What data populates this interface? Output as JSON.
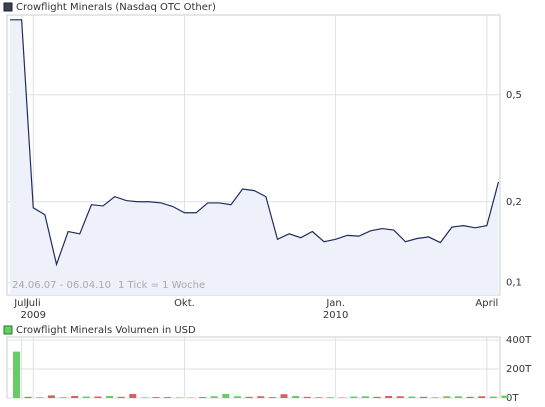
{
  "chart_data": [
    {
      "type": "line",
      "log_y": true,
      "grid": true,
      "series": [
        {
          "name": "Crowflight Minerals (Nasdaq OTC Other)",
          "color": "#1f2d5c",
          "area_color": "#eef0fa",
          "values": [
            0.95,
            0.95,
            0.19,
            0.179,
            0.117,
            0.155,
            0.152,
            0.195,
            0.193,
            0.209,
            0.202,
            0.2,
            0.2,
            0.198,
            0.192,
            0.182,
            0.182,
            0.198,
            0.198,
            0.195,
            0.223,
            0.22,
            0.209,
            0.145,
            0.152,
            0.147,
            0.155,
            0.142,
            0.145,
            0.15,
            0.149,
            0.156,
            0.159,
            0.157,
            0.142,
            0.146,
            0.148,
            0.141,
            0.161,
            0.163,
            0.16,
            0.163,
            0.237
          ]
        }
      ],
      "categories": [
        null,
        "Juli",
        "Juli",
        null,
        null,
        null,
        null,
        null,
        null,
        null,
        null,
        null,
        null,
        null,
        null,
        "Okt.",
        null,
        null,
        null,
        null,
        null,
        null,
        null,
        null,
        null,
        null,
        null,
        null,
        "Jan.",
        null,
        null,
        null,
        null,
        null,
        null,
        null,
        null,
        null,
        null,
        null,
        null,
        "April",
        null
      ],
      "year_labels": [
        null,
        null,
        "2009",
        null,
        null,
        null,
        null,
        null,
        null,
        null,
        null,
        null,
        null,
        null,
        null,
        null,
        null,
        null,
        null,
        null,
        null,
        null,
        null,
        null,
        null,
        null,
        null,
        null,
        "2010",
        null,
        null,
        null,
        null,
        null,
        null,
        null,
        null,
        null,
        null,
        null,
        null,
        null,
        null
      ],
      "ylim": [
        0.09,
        0.99
      ],
      "yticks": [
        {
          "value": 0.5,
          "label": "0,5"
        },
        {
          "value": 0.2,
          "label": "0,2"
        },
        {
          "value": 0.1,
          "label": "0,1"
        }
      ],
      "annotations": [
        "24.06.07 - 06.04.10",
        "1 Tick = 1 Woche"
      ]
    },
    {
      "type": "bar",
      "grid": true,
      "series": [
        {
          "name": "Crowflight Minerals Volumen in USD",
          "color": "#66cc66",
          "values": [
            320000,
            8000,
            4000,
            18000,
            4000,
            14000,
            10000,
            10000,
            14000,
            8000,
            28000,
            3000,
            6000,
            6000,
            4000,
            3000,
            6000,
            12000,
            28000,
            12000,
            8000,
            12000,
            6000,
            26000,
            14000,
            8000,
            6000,
            4000,
            3000,
            10000,
            12000,
            8000,
            14000,
            12000,
            10000,
            8000,
            4000,
            12000,
            12000,
            8000,
            12000,
            10000,
            16000
          ],
          "colors": [
            "#66cc66",
            "#d96060",
            "#d96060",
            "#d96060",
            "#d96060",
            "#d96060",
            "#66cc66",
            "#d96060",
            "#66cc66",
            "#d96060",
            "#d96060",
            "#d96060",
            "#d96060",
            "#d96060",
            "#66cc66",
            "#66cc66",
            "#d96060",
            "#66cc66",
            "#66cc66",
            "#66cc66",
            "#d96060",
            "#d96060",
            "#d96060",
            "#d96060",
            "#66cc66",
            "#d96060",
            "#66cc66",
            "#d96060",
            "#d96060",
            "#66cc66",
            "#66cc66",
            "#d96060",
            "#d96060",
            "#d96060",
            "#66cc66",
            "#d96060",
            "#d96060",
            "#66cc66",
            "#66cc66",
            "#d96060",
            "#d96060",
            "#66cc66",
            "#66cc66"
          ]
        }
      ],
      "ylim": [
        0,
        400000
      ],
      "yticks": [
        {
          "value": 400000,
          "label": "400T"
        },
        {
          "value": 200000,
          "label": "200T"
        },
        {
          "value": 0,
          "label": "0T"
        }
      ]
    }
  ]
}
